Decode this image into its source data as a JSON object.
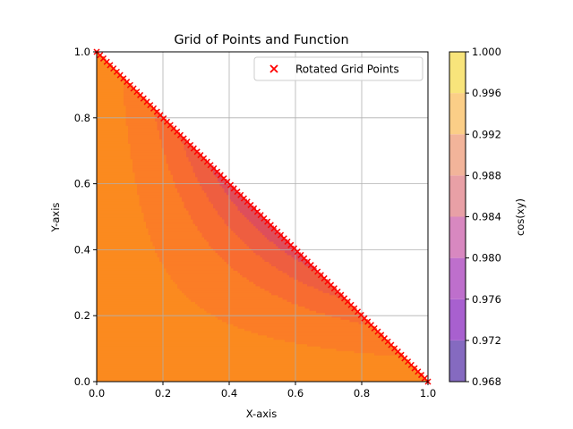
{
  "chart_data": {
    "type": "heatmap",
    "title": "Grid of Points and Function",
    "xlabel": "X-axis",
    "ylabel": "Y-axis",
    "xlim": [
      0,
      1
    ],
    "ylim": [
      0,
      1
    ],
    "xticks": [
      "0.0",
      "0.2",
      "0.4",
      "0.6",
      "0.8",
      "1.0"
    ],
    "yticks": [
      "0.0",
      "0.2",
      "0.4",
      "0.6",
      "0.8",
      "1.0"
    ],
    "grid": true,
    "legend": {
      "placement": "top-right",
      "entries": [
        "Rotated Grid Points"
      ]
    },
    "function": "cos(x*y)",
    "domain": "x >= 0, y >= 0, x + y <= 1",
    "colorbar": {
      "label": "cos(xy)",
      "ticks": [
        "0.968",
        "0.972",
        "0.976",
        "0.980",
        "0.984",
        "0.988",
        "0.992",
        "0.996",
        "1.000"
      ],
      "levels": [
        0.968,
        0.972,
        0.976,
        0.98,
        0.984,
        0.988,
        0.992,
        0.996,
        1.0
      ],
      "colors": [
        "#856ac0",
        "#a860cf",
        "#be6fcc",
        "#d888c0",
        "#e8a0a6",
        "#f2b49a",
        "#fbce87",
        "#f8e47b"
      ]
    },
    "fill_levels": [
      0.9375,
      0.945,
      0.9525,
      0.96,
      0.9675,
      0.975,
      0.9825,
      0.99,
      0.9975,
      1.0
    ],
    "fill_colors": [
      "#8b007a",
      "#a4107d",
      "#b9227a",
      "#cd3a6c",
      "#de4e5b",
      "#ee5e40",
      "#f86c30",
      "#fb7d26",
      "#fb8a1f"
    ],
    "marker_color": "#ff0000",
    "marker_series": {
      "name": "Rotated Grid Points",
      "marker": "x",
      "points_along": "x + y = 1",
      "count": 100
    }
  }
}
